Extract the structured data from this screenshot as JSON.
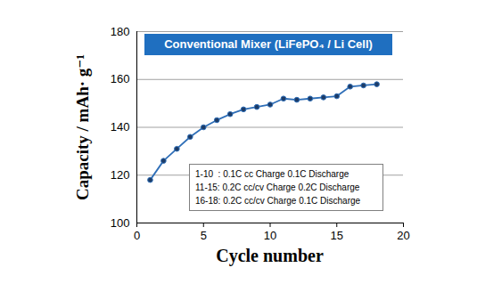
{
  "chart_data": {
    "type": "line",
    "title": "Conventional Mixer (LiFePO₄ / Li Cell)",
    "x_label": "Cycle number",
    "y_label": "Capacity / mAh· g⁻¹",
    "annotations": [
      "1-10  : 0.1C cc Charge 0.1C Discharge",
      "11-15: 0.2C cc/cv Charge 0.2C Discharge",
      "16-18: 0.2C cc/cv Charge 0.1C Discharge"
    ],
    "x": [
      1,
      2,
      3,
      4,
      5,
      6,
      7,
      8,
      9,
      10,
      11,
      12,
      13,
      14,
      15,
      16,
      17,
      18
    ],
    "series": [
      {
        "color": "#2f6fb8",
        "marker": "circle",
        "values": [
          118,
          126,
          131,
          136,
          140,
          143,
          145.5,
          147.5,
          148.5,
          149.5,
          152,
          151.5,
          152,
          152.5,
          153,
          157,
          157.5,
          158
        ]
      }
    ],
    "xlim": [
      0,
      20
    ],
    "xticks": [
      0,
      5,
      10,
      15,
      20
    ],
    "ylim": [
      100,
      180
    ],
    "yticks": [
      100,
      120,
      140,
      160,
      180
    ],
    "grid": true
  }
}
